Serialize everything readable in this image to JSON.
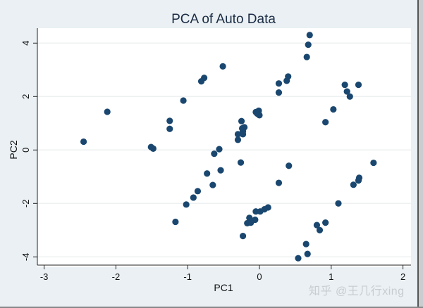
{
  "chart_data": {
    "type": "scatter",
    "title": "PCA of Auto Data",
    "xlabel": "PC1",
    "ylabel": "PC2",
    "xlim": [
      -3.1,
      2.1
    ],
    "ylim": [
      -4.5,
      4.6
    ],
    "xticks": [
      -3,
      -2,
      -1,
      0,
      1,
      2
    ],
    "yticks": [
      -4,
      -2,
      0,
      2,
      4
    ],
    "grid": "horizontal",
    "marker_color": "#1a476f",
    "points": [
      [
        -2.45,
        0.31
      ],
      [
        -2.12,
        1.43
      ],
      [
        -1.51,
        0.11
      ],
      [
        -1.48,
        0.05
      ],
      [
        -1.25,
        1.09
      ],
      [
        -1.25,
        0.79
      ],
      [
        -1.06,
        1.85
      ],
      [
        -0.81,
        2.57
      ],
      [
        -0.77,
        2.7
      ],
      [
        -0.51,
        3.13
      ],
      [
        -0.56,
        0.03
      ],
      [
        -0.63,
        -0.14
      ],
      [
        -0.25,
        1.08
      ],
      [
        -0.21,
        0.85
      ],
      [
        -0.24,
        0.81
      ],
      [
        -0.3,
        0.59
      ],
      [
        -0.23,
        0.59
      ],
      [
        -0.3,
        0.38
      ],
      [
        -0.23,
        0.7
      ],
      [
        -0.05,
        1.42
      ],
      [
        -0.01,
        1.47
      ],
      [
        0.0,
        1.3
      ],
      [
        -0.03,
        1.36
      ],
      [
        0.27,
        2.49
      ],
      [
        0.27,
        2.15
      ],
      [
        0.38,
        2.59
      ],
      [
        0.4,
        2.75
      ],
      [
        0.66,
        3.48
      ],
      [
        0.68,
        3.94
      ],
      [
        0.7,
        4.3
      ],
      [
        0.92,
        1.04
      ],
      [
        1.03,
        1.52
      ],
      [
        1.19,
        2.44
      ],
      [
        1.22,
        2.19
      ],
      [
        1.26,
        2.0
      ],
      [
        1.38,
        2.44
      ],
      [
        -0.26,
        -0.47
      ],
      [
        -0.54,
        -0.76
      ],
      [
        -0.73,
        -0.88
      ],
      [
        -0.65,
        -1.31
      ],
      [
        -0.86,
        -1.54
      ],
      [
        -0.92,
        -1.78
      ],
      [
        -1.02,
        -2.04
      ],
      [
        -1.17,
        -2.69
      ],
      [
        -0.23,
        -3.22
      ],
      [
        0.41,
        -0.59
      ],
      [
        0.27,
        -1.23
      ],
      [
        -0.05,
        -2.3
      ],
      [
        0.01,
        -2.3
      ],
      [
        0.07,
        -2.22
      ],
      [
        0.12,
        -2.15
      ],
      [
        -0.14,
        -2.54
      ],
      [
        -0.06,
        -2.61
      ],
      [
        -0.12,
        -2.72
      ],
      [
        -0.17,
        -2.74
      ],
      [
        0.8,
        -2.81
      ],
      [
        0.84,
        -3.0
      ],
      [
        0.92,
        -2.72
      ],
      [
        0.65,
        -3.52
      ],
      [
        0.67,
        -3.89
      ],
      [
        0.54,
        -4.05
      ],
      [
        1.1,
        -2.0
      ],
      [
        1.31,
        -1.3
      ],
      [
        1.38,
        -1.14
      ],
      [
        1.39,
        -1.04
      ],
      [
        1.59,
        -0.48
      ]
    ]
  },
  "watermark": "知乎 @王几行xing"
}
